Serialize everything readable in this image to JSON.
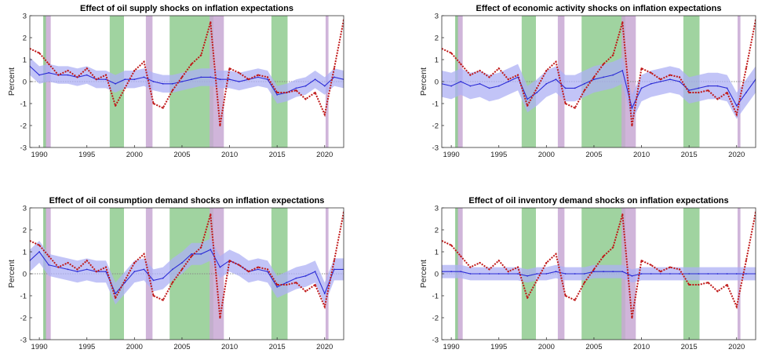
{
  "chart_data": [
    {
      "type": "line",
      "title": "Effect of oil supply shocks on inflation expectations",
      "ylabel": "Percent",
      "xlim": [
        1989,
        2022
      ],
      "ylim": [
        -3,
        3
      ],
      "xticks": [
        1990,
        1995,
        2000,
        2005,
        2010,
        2015,
        2020
      ],
      "yticks": [
        -3,
        -2,
        -1,
        0,
        1,
        2,
        3
      ],
      "x": [
        1989,
        1990,
        1991,
        1992,
        1993,
        1994,
        1995,
        1996,
        1997,
        1998,
        1999,
        2000,
        2001,
        2002,
        2003,
        2004,
        2005,
        2006,
        2007,
        2008,
        2009,
        2010,
        2011,
        2012,
        2013,
        2014,
        2015,
        2016,
        2017,
        2018,
        2019,
        2020,
        2021,
        2022
      ],
      "series": [
        {
          "values": [
            0.7,
            0.3,
            0.4,
            0.3,
            0.3,
            0.2,
            0.3,
            0.1,
            0.1,
            -0.1,
            0.1,
            0.1,
            0.2,
            0.0,
            -0.1,
            -0.1,
            0.0,
            0.1,
            0.2,
            0.2,
            0.1,
            0.1,
            0.0,
            0.1,
            0.2,
            0.1,
            -0.6,
            -0.5,
            -0.3,
            -0.2,
            0.1,
            -0.2,
            0.2,
            0.1
          ],
          "band_width": 0.4
        },
        {
          "values": [
            1.5,
            1.3,
            0.8,
            0.3,
            0.5,
            0.2,
            0.6,
            0.1,
            0.3,
            -1.1,
            -0.3,
            0.5,
            0.9,
            -1.0,
            -1.2,
            -0.4,
            0.2,
            0.8,
            1.2,
            2.7,
            -2.0,
            0.6,
            0.4,
            0.1,
            0.3,
            0.2,
            -0.5,
            -0.5,
            -0.4,
            -0.8,
            -0.5,
            -1.5,
            0.6,
            2.8
          ]
        }
      ]
    },
    {
      "type": "line",
      "title": "Effect of economic activity shocks on inflation expectations",
      "ylabel": "Percent",
      "xlim": [
        1989,
        2022
      ],
      "ylim": [
        -3,
        3
      ],
      "xticks": [
        1990,
        1995,
        2000,
        2005,
        2010,
        2015,
        2020
      ],
      "yticks": [
        -3,
        -2,
        -1,
        0,
        1,
        2,
        3
      ],
      "x": [
        1989,
        1990,
        1991,
        1992,
        1993,
        1994,
        1995,
        1996,
        1997,
        1998,
        1999,
        2000,
        2001,
        2002,
        2003,
        2004,
        2005,
        2006,
        2007,
        2008,
        2009,
        2010,
        2011,
        2012,
        2013,
        2014,
        2015,
        2016,
        2017,
        2018,
        2019,
        2020,
        2021,
        2022
      ],
      "series": [
        {
          "values": [
            -0.1,
            -0.2,
            0.0,
            -0.2,
            -0.1,
            -0.3,
            -0.2,
            0.0,
            0.2,
            -0.8,
            -0.5,
            -0.1,
            0.1,
            -0.3,
            -0.3,
            -0.1,
            0.1,
            0.2,
            0.3,
            0.5,
            -1.2,
            -0.3,
            -0.1,
            0.0,
            0.1,
            0.0,
            -0.4,
            -0.3,
            -0.2,
            -0.2,
            -0.3,
            -1.1,
            -0.5,
            0.1
          ],
          "band_width": 0.6
        },
        {
          "values": [
            1.5,
            1.3,
            0.8,
            0.3,
            0.5,
            0.2,
            0.6,
            0.1,
            0.3,
            -1.1,
            -0.3,
            0.5,
            0.9,
            -1.0,
            -1.2,
            -0.4,
            0.2,
            0.8,
            1.2,
            2.7,
            -2.0,
            0.6,
            0.4,
            0.1,
            0.3,
            0.2,
            -0.5,
            -0.5,
            -0.4,
            -0.8,
            -0.5,
            -1.5,
            0.6,
            2.8
          ]
        }
      ]
    },
    {
      "type": "line",
      "title": "Effect of oil consumption demand shocks on inflation expectations",
      "ylabel": "Percent",
      "xlim": [
        1989,
        2022
      ],
      "ylim": [
        -3,
        3
      ],
      "xticks": [
        1990,
        1995,
        2000,
        2005,
        2010,
        2015,
        2020
      ],
      "yticks": [
        -3,
        -2,
        -1,
        0,
        1,
        2,
        3
      ],
      "x": [
        1989,
        1990,
        1991,
        1992,
        1993,
        1994,
        1995,
        1996,
        1997,
        1998,
        1999,
        2000,
        2001,
        2002,
        2003,
        2004,
        2005,
        2006,
        2007,
        2008,
        2009,
        2010,
        2011,
        2012,
        2013,
        2014,
        2015,
        2016,
        2017,
        2018,
        2019,
        2020,
        2021,
        2022
      ],
      "series": [
        {
          "values": [
            0.6,
            1.0,
            0.4,
            0.3,
            0.2,
            0.1,
            0.2,
            0.1,
            0.1,
            -0.9,
            -0.4,
            0.1,
            0.2,
            -0.3,
            -0.2,
            0.2,
            0.5,
            0.9,
            0.9,
            1.1,
            0.3,
            0.6,
            0.4,
            0.1,
            0.2,
            0.1,
            -0.6,
            -0.4,
            -0.2,
            -0.1,
            0.1,
            -0.9,
            0.2,
            0.2
          ],
          "band_width": 0.5
        },
        {
          "values": [
            1.5,
            1.3,
            0.8,
            0.3,
            0.5,
            0.2,
            0.6,
            0.1,
            0.3,
            -1.1,
            -0.3,
            0.5,
            0.9,
            -1.0,
            -1.2,
            -0.4,
            0.2,
            0.8,
            1.2,
            2.7,
            -2.0,
            0.6,
            0.4,
            0.1,
            0.3,
            0.2,
            -0.5,
            -0.5,
            -0.4,
            -0.8,
            -0.5,
            -1.5,
            0.6,
            2.8
          ]
        }
      ]
    },
    {
      "type": "line",
      "title": "Effect of oil inventory demand shocks on inflation expectations",
      "ylabel": "Percent",
      "xlim": [
        1989,
        2022
      ],
      "ylim": [
        -3,
        3
      ],
      "xticks": [
        1990,
        1995,
        2000,
        2005,
        2010,
        2015,
        2020
      ],
      "yticks": [
        -3,
        -2,
        -1,
        0,
        1,
        2,
        3
      ],
      "x": [
        1989,
        1990,
        1991,
        1992,
        1993,
        1994,
        1995,
        1996,
        1997,
        1998,
        1999,
        2000,
        2001,
        2002,
        2003,
        2004,
        2005,
        2006,
        2007,
        2008,
        2009,
        2010,
        2011,
        2012,
        2013,
        2014,
        2015,
        2016,
        2017,
        2018,
        2019,
        2020,
        2021,
        2022
      ],
      "series": [
        {
          "values": [
            0.1,
            0.1,
            0.1,
            0.0,
            0.0,
            0.0,
            0.0,
            0.0,
            0.0,
            -0.1,
            0.0,
            0.0,
            0.1,
            0.0,
            0.0,
            0.0,
            0.1,
            0.1,
            0.1,
            0.1,
            -0.1,
            0.0,
            0.0,
            0.0,
            0.0,
            0.0,
            0.0,
            0.0,
            0.0,
            0.0,
            0.0,
            0.0,
            0.0,
            0.0
          ],
          "band_width": 0.3
        },
        {
          "values": [
            1.5,
            1.3,
            0.8,
            0.3,
            0.5,
            0.2,
            0.6,
            0.1,
            0.3,
            -1.1,
            -0.3,
            0.5,
            0.9,
            -1.0,
            -1.2,
            -0.4,
            0.2,
            0.8,
            1.2,
            2.7,
            -2.0,
            0.6,
            0.4,
            0.1,
            0.3,
            0.2,
            -0.5,
            -0.5,
            -0.4,
            -0.8,
            -0.5,
            -1.5,
            0.6,
            2.8
          ]
        }
      ]
    }
  ],
  "shaded_periods": [
    {
      "start": 1990.5,
      "end": 1991.2,
      "color": "#c8a8d4"
    },
    {
      "start": 1990.4,
      "end": 1990.7,
      "color": "#8fcb8f"
    },
    {
      "start": 1997.4,
      "end": 1998.9,
      "color": "#8fcb8f"
    },
    {
      "start": 2001.2,
      "end": 2001.9,
      "color": "#c8a8d4"
    },
    {
      "start": 2003.7,
      "end": 2008.3,
      "color": "#8fcb8f"
    },
    {
      "start": 2007.9,
      "end": 2009.4,
      "color": "#c8a8d4"
    },
    {
      "start": 2014.4,
      "end": 2016.1,
      "color": "#8fcb8f"
    },
    {
      "start": 2020.1,
      "end": 2020.4,
      "color": "#c8a8d4"
    }
  ],
  "colors": {
    "estimate_line": "#2b2bd6",
    "band": "#aeb0f4",
    "actual_line": "#c01818",
    "zero_line": "#888888"
  }
}
